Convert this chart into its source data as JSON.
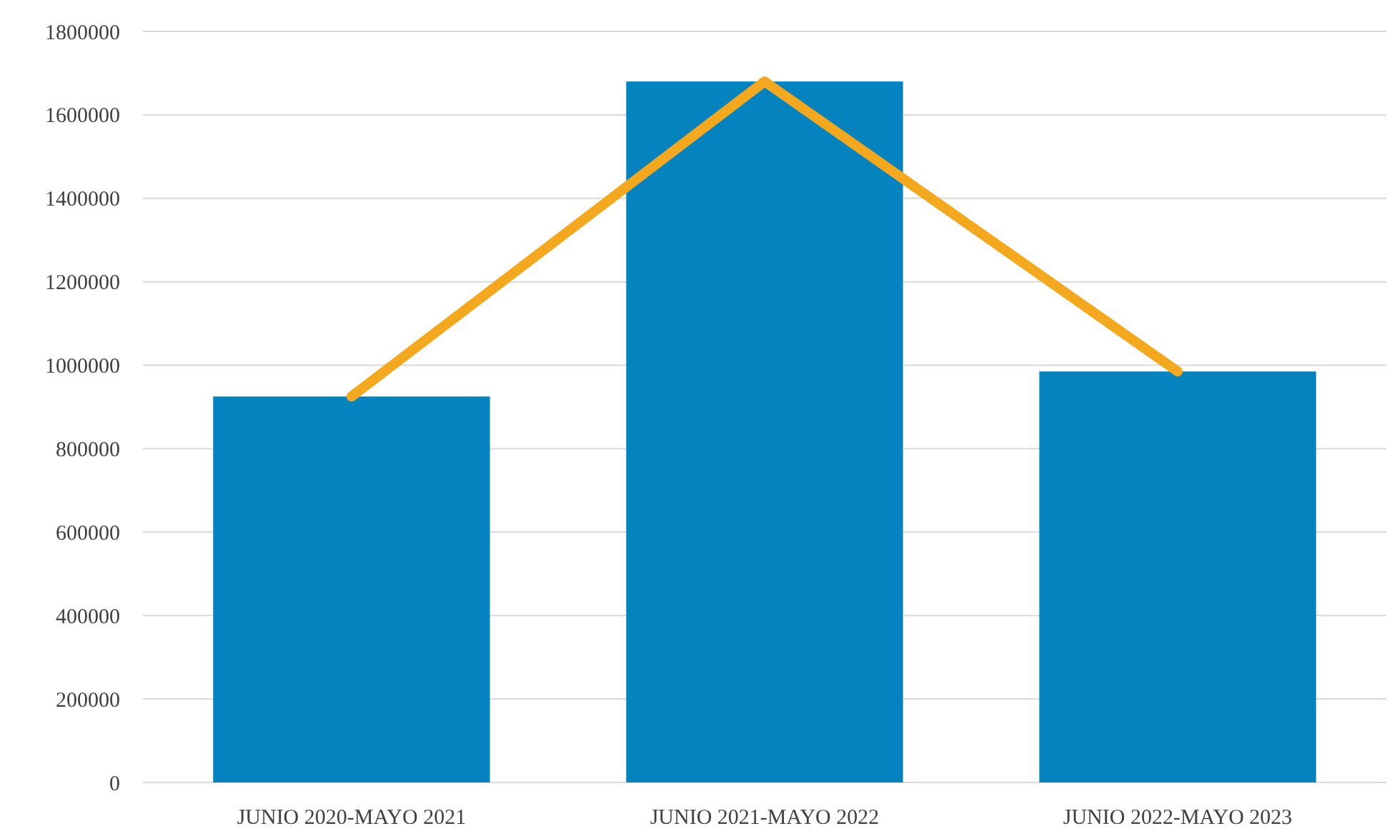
{
  "chart_data": {
    "type": "bar",
    "categories": [
      "JUNIO 2020-MAYO 2021",
      "JUNIO 2021-MAYO 2022",
      "JUNIO 2022-MAYO 2023"
    ],
    "series": [
      {
        "color": "#0583bf",
        "values": [
          925000,
          1680000,
          985000
        ]
      },
      {
        "type": "line",
        "color": "#f4a81d",
        "values": [
          925000,
          1680000,
          985000
        ]
      }
    ],
    "ylim": [
      0,
      1800000
    ],
    "yticks": [
      0,
      200000,
      400000,
      600000,
      800000,
      1000000,
      1200000,
      1400000,
      1600000,
      1800000
    ],
    "grid": "y"
  }
}
